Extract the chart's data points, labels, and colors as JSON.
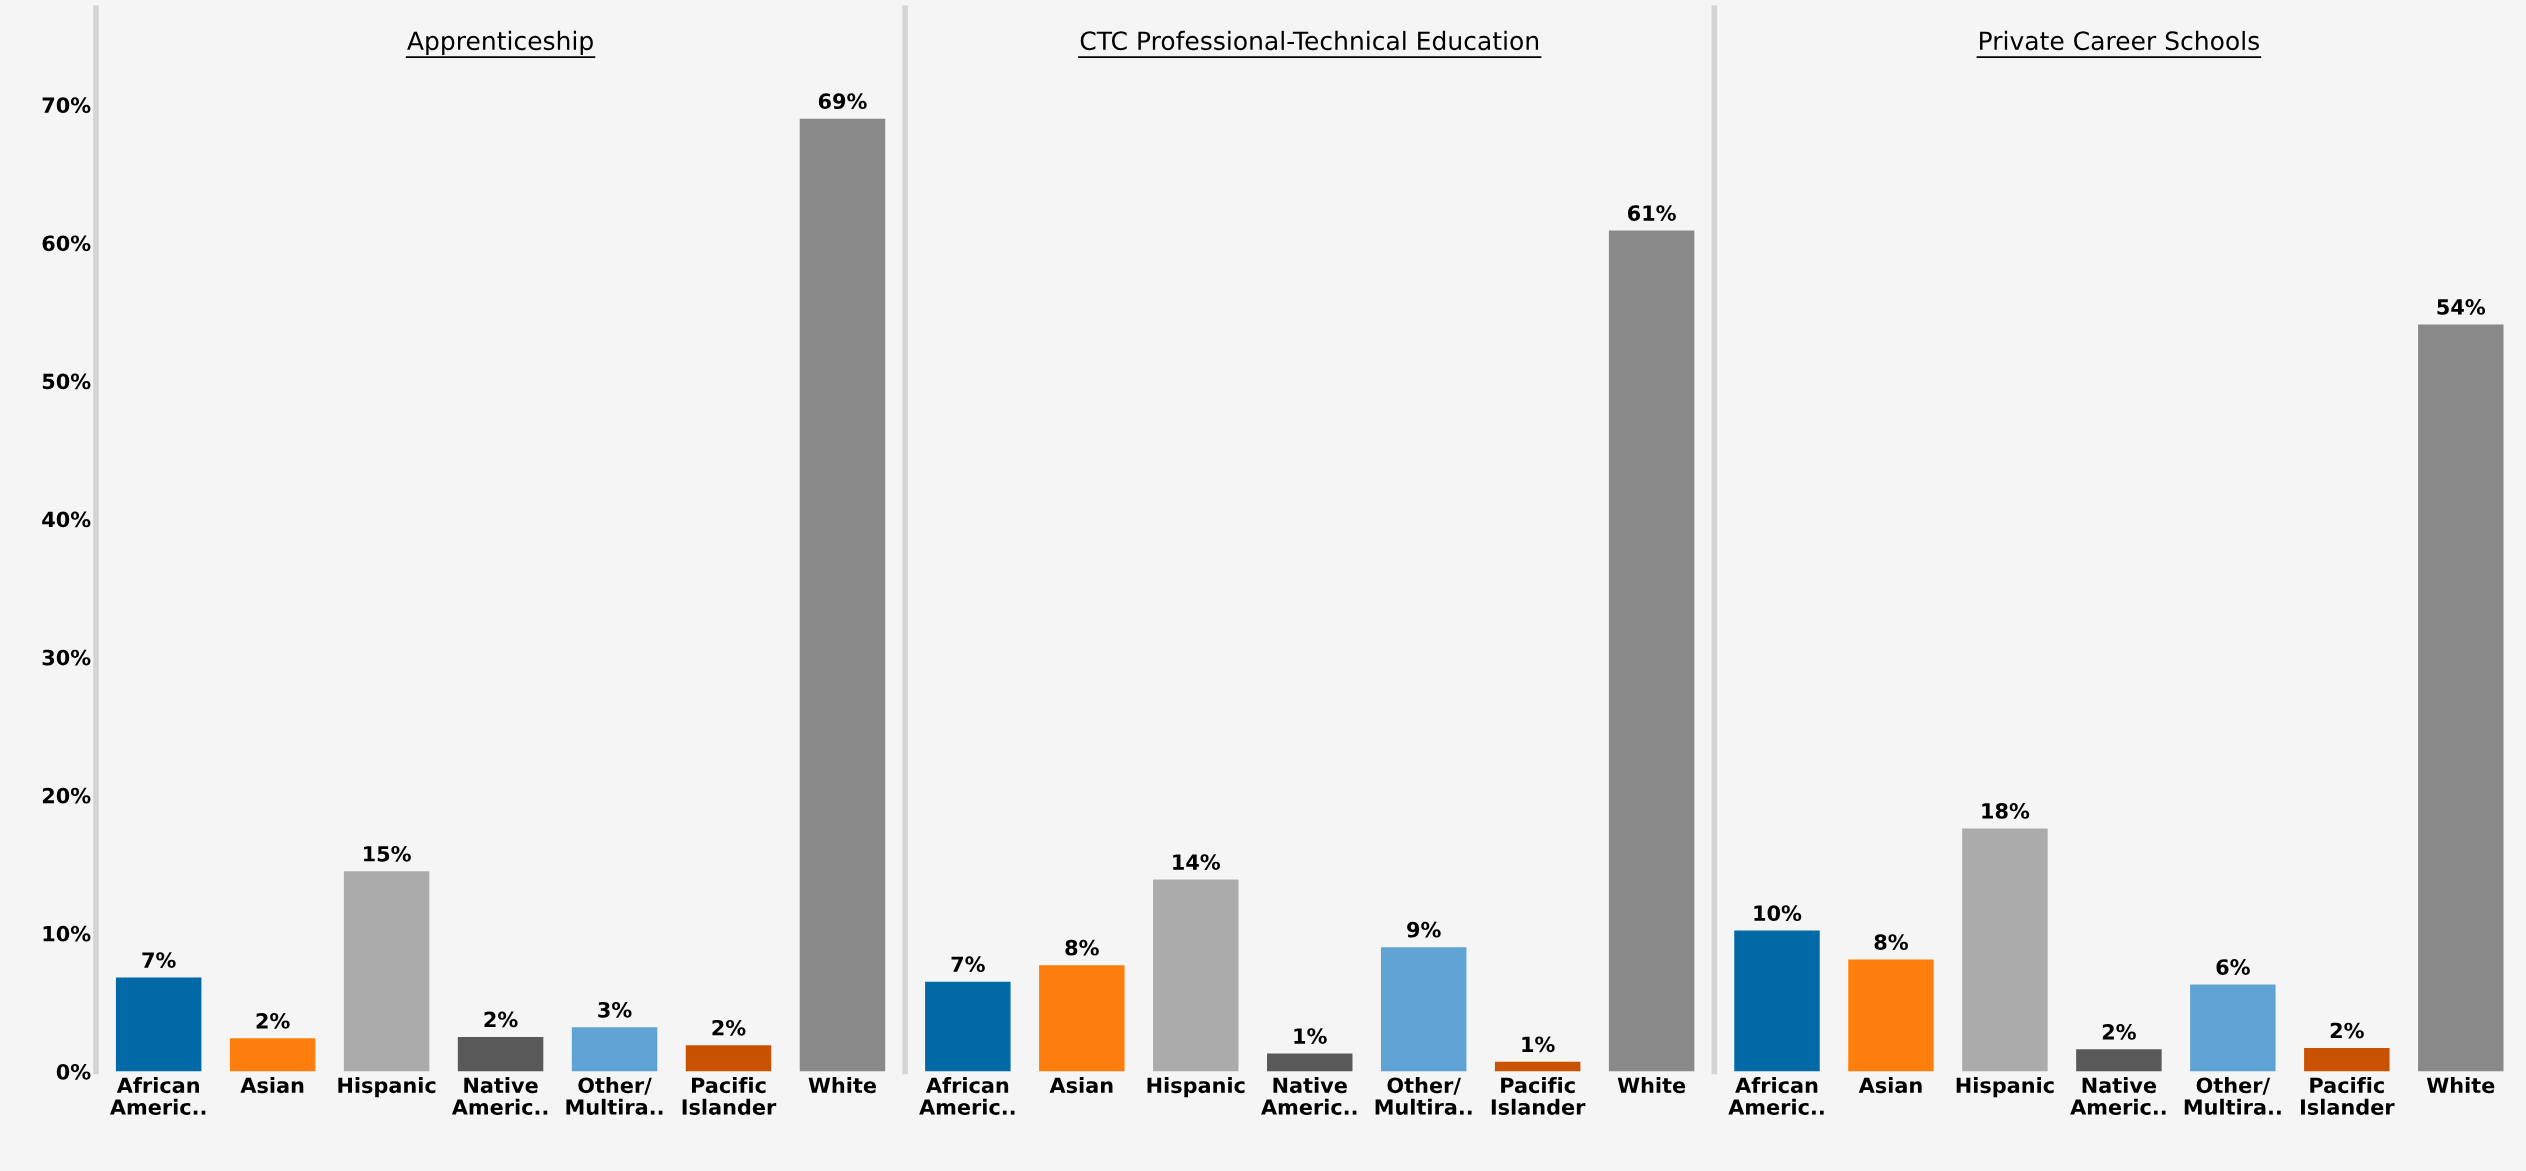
{
  "chart_data": [
    {
      "type": "bar",
      "title": "Apprenticeship",
      "categories": [
        "African\nAmeric..",
        "Asian",
        "Hispanic",
        "Native\nAmeric..",
        "Other/\nMultira..",
        "Pacific\nIslander",
        "White"
      ],
      "colors": [
        "#0069a6",
        "#ff7f0e",
        "#ababab",
        "#595959",
        "#5fa2d4",
        "#c85200",
        "#898989"
      ],
      "values": [
        6.8,
        2.4,
        14.5,
        2.5,
        3.2,
        1.9,
        69.0
      ],
      "value_labels": [
        "7%",
        "2%",
        "15%",
        "2%",
        "3%",
        "2%",
        "69%"
      ],
      "ylim": [
        0,
        77
      ],
      "yticks": [
        {
          "value": 0,
          "label": "0%"
        },
        {
          "value": 10,
          "label": "10%"
        },
        {
          "value": 20,
          "label": "20%"
        },
        {
          "value": 30,
          "label": "30%"
        },
        {
          "value": 40,
          "label": "40%"
        },
        {
          "value": 50,
          "label": "50%"
        },
        {
          "value": 60,
          "label": "60%"
        },
        {
          "value": 70,
          "label": "70%"
        }
      ],
      "grid": false
    },
    {
      "type": "bar",
      "title": "CTC Professional-Technical Education",
      "categories": [
        "African\nAmeric..",
        "Asian",
        "Hispanic",
        "Native\nAmeric..",
        "Other/\nMultira..",
        "Pacific\nIslander",
        "White"
      ],
      "colors": [
        "#0069a6",
        "#ff7f0e",
        "#ababab",
        "#595959",
        "#5fa2d4",
        "#c85200",
        "#898989"
      ],
      "values": [
        6.5,
        7.7,
        13.9,
        1.3,
        9.0,
        0.7,
        60.9
      ],
      "value_labels": [
        "7%",
        "8%",
        "14%",
        "1%",
        "9%",
        "1%",
        "61%"
      ],
      "ylim": [
        0,
        77
      ],
      "grid": false,
      "tick_labels": "x"
    },
    {
      "type": "bar",
      "title": "Private Career Schools",
      "categories": [
        "African\nAmeric..",
        "Asian",
        "Hispanic",
        "Native\nAmeric..",
        "Other/\nMultira..",
        "Pacific\nIslander",
        "White"
      ],
      "colors": [
        "#0069a6",
        "#ff7f0e",
        "#ababab",
        "#595959",
        "#5fa2d4",
        "#c85200",
        "#898989"
      ],
      "values": [
        10.2,
        8.1,
        17.6,
        1.6,
        6.3,
        1.7,
        54.1
      ],
      "value_labels": [
        "10%",
        "8%",
        "18%",
        "2%",
        "6%",
        "2%",
        "54%"
      ],
      "ylim": [
        0,
        77
      ],
      "grid": false,
      "tick_labels": "x"
    }
  ]
}
